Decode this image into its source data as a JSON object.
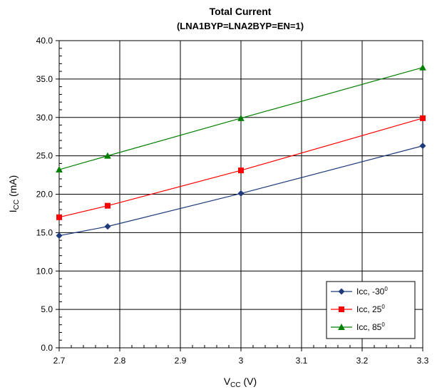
{
  "chart_data": {
    "type": "line",
    "title": "Total Current",
    "subtitle": "(LNA1BYP=LNA2BYP=EN=1)",
    "xlabel": {
      "main": "V",
      "sub": "CC",
      "unit": " (V)"
    },
    "ylabel": {
      "main": "I",
      "sub": "CC",
      "unit": " (mA)"
    },
    "xlim": [
      2.7,
      3.3
    ],
    "ylim": [
      0,
      40
    ],
    "xticks": [
      "2.7",
      "2.8",
      "2.9",
      "3",
      "3.1",
      "3.2",
      "3.3"
    ],
    "yticks": [
      "0.0",
      "5.0",
      "10.0",
      "15.0",
      "20.0",
      "25.0",
      "30.0",
      "35.0",
      "40.0"
    ],
    "grid": true,
    "legend_position": "bottom-right",
    "series": [
      {
        "name": "Icc, -30",
        "sup": "0",
        "color": "#1f3a7a",
        "marker": "diamond",
        "points": [
          [
            2.7,
            14.6
          ],
          [
            2.78,
            15.8
          ],
          [
            3.0,
            20.1
          ],
          [
            3.3,
            26.3
          ]
        ]
      },
      {
        "name": "Icc, 25",
        "sup": "0",
        "color": "#ff0000",
        "marker": "square",
        "points": [
          [
            2.7,
            17.0
          ],
          [
            2.78,
            18.5
          ],
          [
            3.0,
            23.1
          ],
          [
            3.3,
            29.9
          ]
        ]
      },
      {
        "name": "Icc, 85",
        "sup": "0",
        "color": "#008000",
        "marker": "triangle",
        "points": [
          [
            2.7,
            23.2
          ],
          [
            2.78,
            25.0
          ],
          [
            3.0,
            29.9
          ],
          [
            3.3,
            36.5
          ]
        ]
      }
    ]
  }
}
